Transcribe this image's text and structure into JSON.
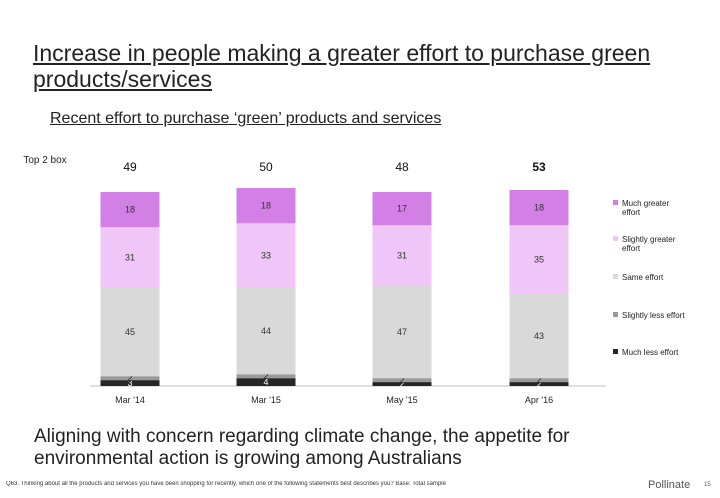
{
  "slide": {
    "title": "Increase in people making a greater effort to purchase green products/services",
    "subtitle": "Recent effort to purchase ‘green’ products and services",
    "top2_label": "Top 2 box",
    "footnote": "Aligning with concern regarding climate change, the appetite for environmental action is growing among Australians",
    "source": "Q63. Thinking about all the products and services you have been shopping for recently, which one of the following statements best describes you? Base: Total sample",
    "brand": "Pollinate",
    "page_number": "15"
  },
  "chart_data": {
    "type": "bar",
    "stacked": true,
    "categories": [
      "Mar '14",
      "Mar '15",
      "May '15",
      "Apr '16"
    ],
    "top2": [
      49,
      50,
      48,
      53
    ],
    "top2_bold_index": 3,
    "series": [
      {
        "name": "Much less effort",
        "values": [
          3,
          4,
          2,
          2
        ],
        "color": "#262626"
      },
      {
        "name": "Slightly less effort",
        "values": [
          2,
          2,
          2,
          2
        ],
        "color": "#9a9a9a"
      },
      {
        "name": "Same effort",
        "values": [
          45,
          44,
          47,
          43
        ],
        "color": "#d9d9d9"
      },
      {
        "name": "Slightly greater effort",
        "values": [
          31,
          33,
          31,
          35
        ],
        "color": "#efc6f7"
      },
      {
        "name": "Much greater effort",
        "values": [
          18,
          18,
          17,
          18
        ],
        "color": "#d27fe6"
      }
    ],
    "legend_order": [
      "Much greater effort",
      "Slightly greater effort",
      "Same effort",
      "Slightly less effort",
      "Much less effort"
    ],
    "ylim": [
      0,
      100
    ],
    "legend_position": "right"
  }
}
